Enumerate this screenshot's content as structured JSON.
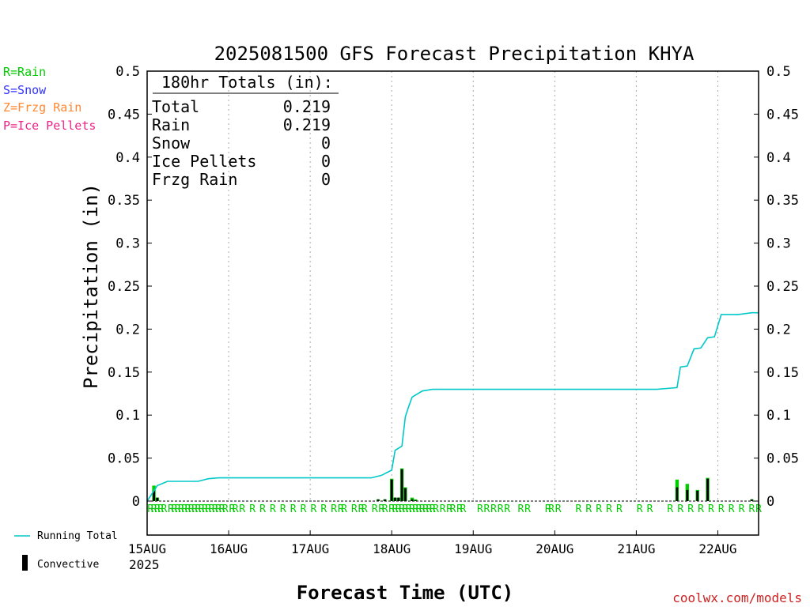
{
  "chart_data": {
    "type": "bar",
    "title": "2025081500 GFS Forecast Precipitation KHYA",
    "xlabel": "Forecast Time (UTC)",
    "ylabel": "Precipitation (in)",
    "ylim": [
      0,
      0.5
    ],
    "xlim": [
      "2025-08-15T00:00",
      "2025-08-22T12:00"
    ],
    "y_ticks": [
      "0",
      "0.05",
      "0.1",
      "0.15",
      "0.2",
      "0.25",
      "0.3",
      "0.35",
      "0.4",
      "0.45",
      "0.5"
    ],
    "x_ticks": [
      {
        "t": "2025-08-15T00:00",
        "label": "15AUG"
      },
      {
        "t": "2025-08-16T00:00",
        "label": "16AUG"
      },
      {
        "t": "2025-08-17T00:00",
        "label": "17AUG"
      },
      {
        "t": "2025-08-18T00:00",
        "label": "18AUG"
      },
      {
        "t": "2025-08-19T00:00",
        "label": "19AUG"
      },
      {
        "t": "2025-08-20T00:00",
        "label": "20AUG"
      },
      {
        "t": "2025-08-21T00:00",
        "label": "21AUG"
      },
      {
        "t": "2025-08-22T00:00",
        "label": "22AUG"
      }
    ],
    "year_label": "2025",
    "grid": "vertical dotted",
    "legend_top": [
      {
        "label": "R=Rain",
        "color": "#00cc00"
      },
      {
        "label": "S=Snow",
        "color": "#3333ff"
      },
      {
        "label": "Z=Frzg Rain",
        "color": "#ff8833"
      },
      {
        "label": "P=Ice Pellets",
        "color": "#ee2288"
      }
    ],
    "legend_bottom": [
      {
        "label": "Running Total",
        "color": "#00c8c8",
        "kind": "line"
      },
      {
        "label": "Convective",
        "color": "#000000",
        "kind": "bar"
      }
    ],
    "totals": {
      "heading": "180hr Totals (in):",
      "rows": [
        {
          "label": "Total",
          "value": "0.219"
        },
        {
          "label": "Rain",
          "value": "0.219"
        },
        {
          "label": "Snow",
          "value": "0"
        },
        {
          "label": "Ice Pellets",
          "value": "0"
        },
        {
          "label": "Frzg Rain",
          "value": "0"
        }
      ]
    },
    "series": [
      {
        "name": "Running Total",
        "color": "#00c8c8",
        "points": [
          [
            "2025-08-15T00:00",
            0.0
          ],
          [
            "2025-08-15T03:00",
            0.018
          ],
          [
            "2025-08-15T06:00",
            0.023
          ],
          [
            "2025-08-15T12:00",
            0.023
          ],
          [
            "2025-08-15T15:00",
            0.023
          ],
          [
            "2025-08-15T18:00",
            0.026
          ],
          [
            "2025-08-15T21:00",
            0.027
          ],
          [
            "2025-08-17T18:00",
            0.027
          ],
          [
            "2025-08-17T21:00",
            0.03
          ],
          [
            "2025-08-17T23:00",
            0.034
          ],
          [
            "2025-08-18T00:00",
            0.036
          ],
          [
            "2025-08-18T01:00",
            0.059
          ],
          [
            "2025-08-18T03:00",
            0.064
          ],
          [
            "2025-08-18T04:00",
            0.098
          ],
          [
            "2025-08-18T05:00",
            0.11
          ],
          [
            "2025-08-18T06:00",
            0.121
          ],
          [
            "2025-08-18T09:00",
            0.128
          ],
          [
            "2025-08-18T12:00",
            0.13
          ],
          [
            "2025-08-21T06:00",
            0.13
          ],
          [
            "2025-08-21T09:00",
            0.131
          ],
          [
            "2025-08-21T12:00",
            0.132
          ],
          [
            "2025-08-21T13:00",
            0.156
          ],
          [
            "2025-08-21T15:00",
            0.157
          ],
          [
            "2025-08-21T17:00",
            0.177
          ],
          [
            "2025-08-21T19:00",
            0.178
          ],
          [
            "2025-08-21T21:00",
            0.19
          ],
          [
            "2025-08-21T23:00",
            0.191
          ],
          [
            "2025-08-22T01:00",
            0.217
          ],
          [
            "2025-08-22T06:00",
            0.217
          ],
          [
            "2025-08-22T10:00",
            0.219
          ],
          [
            "2025-08-22T12:00",
            0.219
          ]
        ]
      }
    ],
    "bars": [
      {
        "t": "2025-08-15T02:00",
        "total": 0.018,
        "convective": 0.012
      },
      {
        "t": "2025-08-15T03:00",
        "total": 0.004,
        "convective": 0.004
      },
      {
        "t": "2025-08-17T20:00",
        "total": 0.002,
        "convective": 0.002
      },
      {
        "t": "2025-08-17T22:00",
        "total": 0.002,
        "convective": 0.002
      },
      {
        "t": "2025-08-18T00:00",
        "total": 0.026,
        "convective": 0.025
      },
      {
        "t": "2025-08-18T01:00",
        "total": 0.004,
        "convective": 0.004
      },
      {
        "t": "2025-08-18T02:00",
        "total": 0.004,
        "convective": 0.004
      },
      {
        "t": "2025-08-18T03:00",
        "total": 0.038,
        "convective": 0.037
      },
      {
        "t": "2025-08-18T04:00",
        "total": 0.016,
        "convective": 0.015
      },
      {
        "t": "2025-08-18T06:00",
        "total": 0.004,
        "convective": 0.002
      },
      {
        "t": "2025-08-18T07:00",
        "total": 0.002,
        "convective": 0.001
      },
      {
        "t": "2025-08-21T12:00",
        "total": 0.025,
        "convective": 0.016
      },
      {
        "t": "2025-08-21T15:00",
        "total": 0.02,
        "convective": 0.013
      },
      {
        "t": "2025-08-21T18:00",
        "total": 0.013,
        "convective": 0.012
      },
      {
        "t": "2025-08-21T21:00",
        "total": 0.027,
        "convective": 0.026
      },
      {
        "t": "2025-08-22T10:00",
        "total": 0.002,
        "convective": 0.002
      }
    ],
    "ptype_marks": [
      "2025-08-15T01:00",
      "2025-08-15T02:00",
      "2025-08-15T03:00",
      "2025-08-15T04:00",
      "2025-08-15T05:00",
      "2025-08-15T07:00",
      "2025-08-15T08:00",
      "2025-08-15T09:00",
      "2025-08-15T10:00",
      "2025-08-15T11:00",
      "2025-08-15T12:00",
      "2025-08-15T13:00",
      "2025-08-15T14:00",
      "2025-08-15T15:00",
      "2025-08-15T16:00",
      "2025-08-15T17:00",
      "2025-08-15T18:00",
      "2025-08-15T19:00",
      "2025-08-15T20:00",
      "2025-08-15T21:00",
      "2025-08-15T22:00",
      "2025-08-15T23:00",
      "2025-08-16T01:00",
      "2025-08-16T02:00",
      "2025-08-16T04:00",
      "2025-08-16T07:00",
      "2025-08-16T10:00",
      "2025-08-16T13:00",
      "2025-08-16T16:00",
      "2025-08-16T19:00",
      "2025-08-16T22:00",
      "2025-08-17T01:00",
      "2025-08-17T04:00",
      "2025-08-17T07:00",
      "2025-08-17T09:00",
      "2025-08-17T10:00",
      "2025-08-17T13:00",
      "2025-08-17T15:00",
      "2025-08-17T16:00",
      "2025-08-17T19:00",
      "2025-08-17T21:00",
      "2025-08-17T22:00",
      "2025-08-18T00:00",
      "2025-08-18T01:00",
      "2025-08-18T02:00",
      "2025-08-18T03:00",
      "2025-08-18T04:00",
      "2025-08-18T05:00",
      "2025-08-18T06:00",
      "2025-08-18T07:00",
      "2025-08-18T08:00",
      "2025-08-18T09:00",
      "2025-08-18T10:00",
      "2025-08-18T11:00",
      "2025-08-18T12:00",
      "2025-08-18T13:00",
      "2025-08-18T15:00",
      "2025-08-18T17:00",
      "2025-08-18T18:00",
      "2025-08-18T20:00",
      "2025-08-18T21:00",
      "2025-08-19T02:00",
      "2025-08-19T04:00",
      "2025-08-19T06:00",
      "2025-08-19T08:00",
      "2025-08-19T10:00",
      "2025-08-19T14:00",
      "2025-08-19T16:00",
      "2025-08-19T22:00",
      "2025-08-19T23:00",
      "2025-08-20T01:00",
      "2025-08-20T07:00",
      "2025-08-20T10:00",
      "2025-08-20T13:00",
      "2025-08-20T16:00",
      "2025-08-20T19:00",
      "2025-08-21T01:00",
      "2025-08-21T04:00",
      "2025-08-21T10:00",
      "2025-08-21T13:00",
      "2025-08-21T16:00",
      "2025-08-21T19:00",
      "2025-08-21T22:00",
      "2025-08-22T01:00",
      "2025-08-22T04:00",
      "2025-08-22T07:00",
      "2025-08-22T10:00",
      "2025-08-22T12:00"
    ],
    "ptype_mark_label": "R",
    "credit": "coolwx.com/models"
  }
}
